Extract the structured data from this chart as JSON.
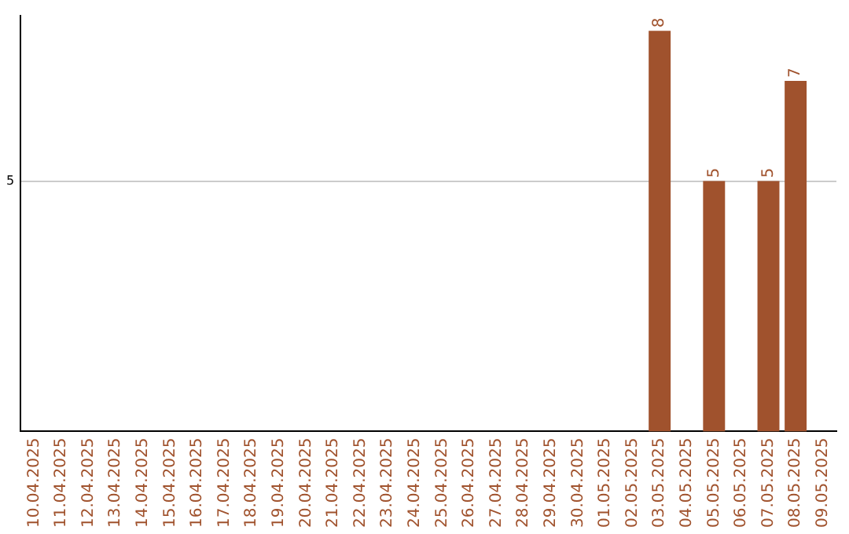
{
  "chart_data": {
    "type": "bar",
    "categories": [
      "10.04.2025",
      "11.04.2025",
      "12.04.2025",
      "13.04.2025",
      "14.04.2025",
      "15.04.2025",
      "16.04.2025",
      "17.04.2025",
      "18.04.2025",
      "19.04.2025",
      "20.04.2025",
      "21.04.2025",
      "22.04.2025",
      "23.04.2025",
      "24.04.2025",
      "25.04.2025",
      "26.04.2025",
      "27.04.2025",
      "28.04.2025",
      "29.04.2025",
      "30.04.2025",
      "01.05.2025",
      "02.05.2025",
      "03.05.2025",
      "04.05.2025",
      "05.05.2025",
      "06.05.2025",
      "07.05.2025",
      "08.05.2025",
      "09.05.2025"
    ],
    "values": [
      null,
      null,
      null,
      null,
      null,
      null,
      null,
      null,
      null,
      null,
      null,
      null,
      null,
      null,
      null,
      null,
      null,
      null,
      null,
      null,
      null,
      null,
      null,
      8,
      null,
      5,
      null,
      5,
      7,
      null
    ],
    "data_labels": true,
    "color": "#a0522d",
    "ylim": [
      0,
      8.3
    ],
    "yticks": [
      5
    ],
    "grid": "y",
    "legend": false
  }
}
